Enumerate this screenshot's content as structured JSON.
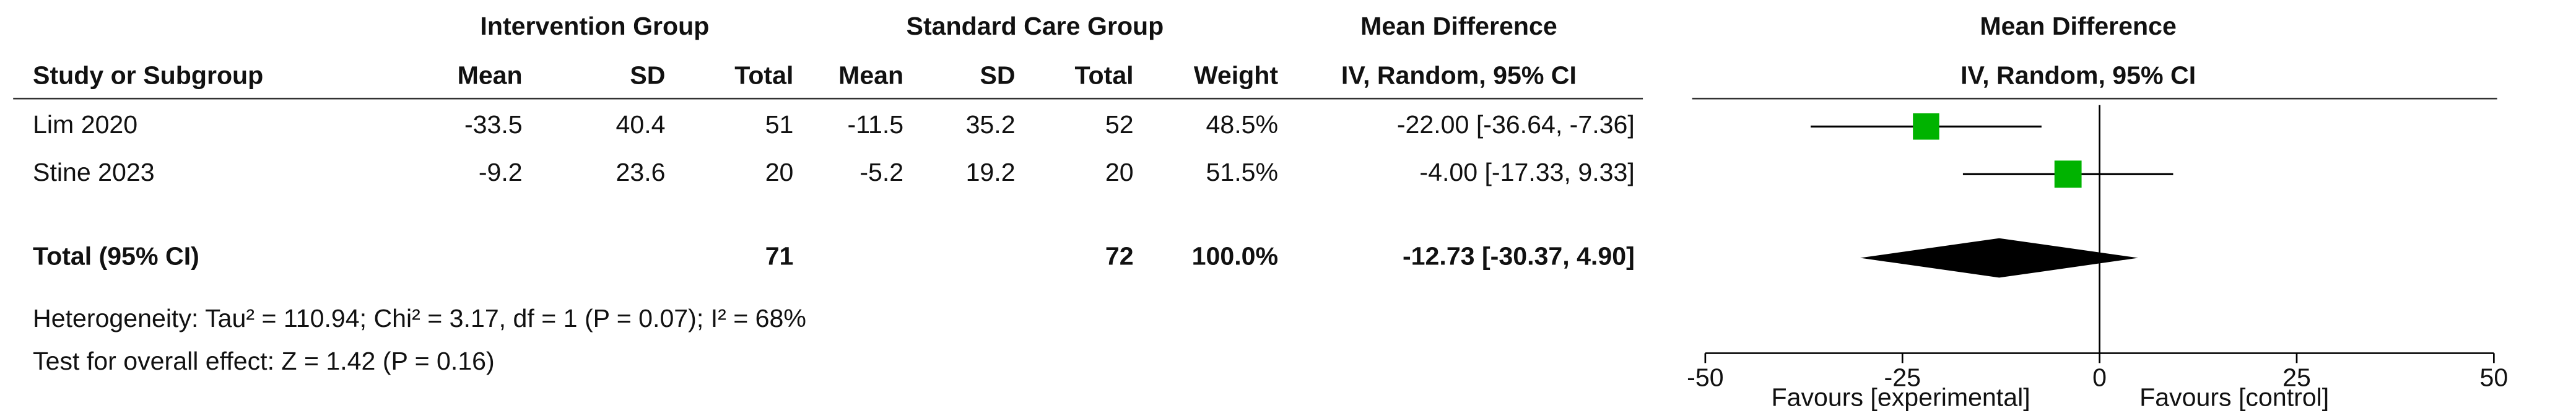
{
  "chart_data": {
    "type": "forest",
    "headers": {
      "group_intervention": "Intervention Group",
      "group_standard": "Standard Care Group",
      "md_table": "Mean Difference",
      "md_plot": "Mean Difference",
      "study": "Study or Subgroup",
      "mean1": "Mean",
      "sd1": "SD",
      "total1": "Total",
      "mean2": "Mean",
      "sd2": "SD",
      "total2": "Total",
      "weight": "Weight",
      "method_table": "IV, Random, 95% CI",
      "method_plot": "IV, Random, 95% CI"
    },
    "studies": [
      {
        "name": "Lim 2020",
        "mean1": -33.5,
        "sd1": 40.4,
        "total1": 51,
        "mean2": -11.5,
        "sd2": 35.2,
        "total2": 52,
        "weight": 48.5,
        "weight_label": "48.5%",
        "md": -22.0,
        "ci": [
          -36.64,
          -7.36
        ],
        "md_label": "-22.00 [-36.64, -7.36]"
      },
      {
        "name": "Stine 2023",
        "mean1": -9.2,
        "sd1": 23.6,
        "total1": 20,
        "mean2": -5.2,
        "sd2": 19.2,
        "total2": 20,
        "weight": 51.5,
        "weight_label": "51.5%",
        "md": -4.0,
        "ci": [
          -17.33,
          9.33
        ],
        "md_label": "-4.00 [-17.33, 9.33]"
      }
    ],
    "total": {
      "name": "Total (95% CI)",
      "total1": 71,
      "total2": 72,
      "weight": 100.0,
      "weight_label": "100.0%",
      "md": -12.73,
      "ci": [
        -30.37,
        4.9
      ],
      "md_label": "-12.73 [-30.37, 4.90]"
    },
    "heterogeneity": "Heterogeneity: Tau² = 110.94; Chi² = 3.17, df = 1 (P = 0.07); I² = 68%",
    "overall_effect": "Test for overall effect: Z = 1.42 (P = 0.16)",
    "xlim": [
      -50,
      50
    ],
    "xticks": [
      -50,
      -25,
      0,
      25,
      50
    ],
    "favours": [
      "Favours [experimental]",
      "Favours [control]"
    ],
    "square_color": "#00b300",
    "diamond_color": "#000000"
  }
}
